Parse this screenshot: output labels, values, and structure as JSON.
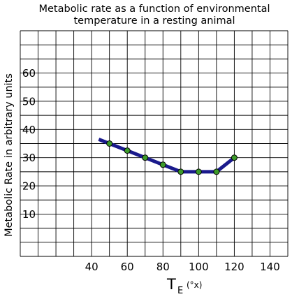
{
  "chart_data": {
    "type": "line",
    "title_line1": "Metabolic rate as a function of environmental",
    "title_line2": "temperature in a resting animal",
    "ylabel": "Metabolic Rate in arbitrary units",
    "xlabel_main": "T",
    "xlabel_sub": "E",
    "xlabel_unit": "(°x)",
    "xlim": [
      0,
      150
    ],
    "ylim": [
      -5,
      75
    ],
    "x_grid_step": 10,
    "y_grid_step": 5,
    "x_ticks": [
      40,
      60,
      80,
      100,
      120,
      140
    ],
    "x_tick_labels": [
      "40",
      "60",
      "80",
      "100",
      "120",
      "140"
    ],
    "y_ticks": [
      10,
      20,
      30,
      40,
      50,
      60
    ],
    "y_tick_labels": [
      "10",
      "20",
      "30",
      "40",
      "50",
      "60"
    ],
    "grid": true,
    "series": [
      {
        "x": [
          44,
          50,
          60,
          70,
          80,
          90,
          100,
          110,
          120
        ],
        "y": [
          36.5,
          35,
          32.5,
          30,
          27.5,
          25,
          25,
          25,
          30
        ],
        "markers": [
          false,
          true,
          true,
          true,
          true,
          true,
          true,
          true,
          true
        ],
        "line_color": "#1a1a8c",
        "marker_color": "#3c9a2a"
      }
    ]
  }
}
